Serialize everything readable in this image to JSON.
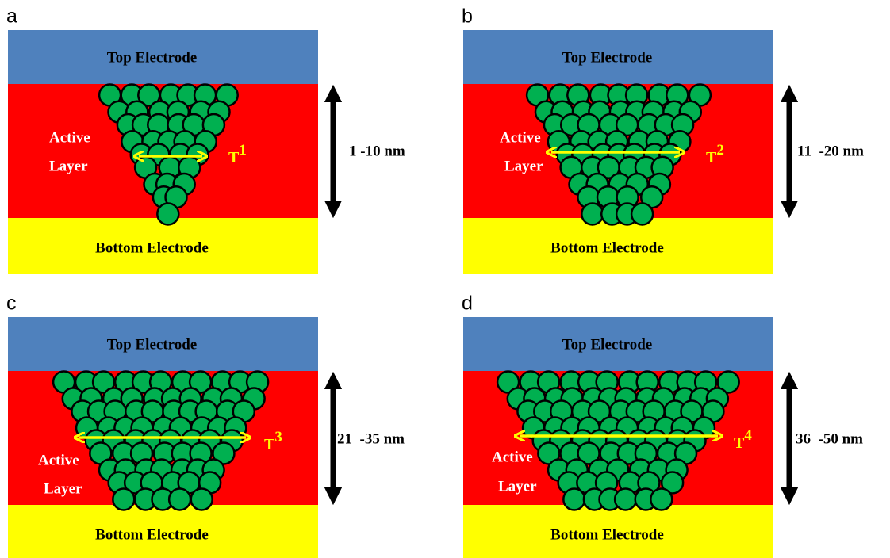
{
  "panels": [
    {
      "letter": "a",
      "top_electrode": "Top Electrode",
      "active_layer": [
        "Active",
        "Layer"
      ],
      "bottom_electrode": "Bottom Electrode",
      "thickness_symbol": {
        "base": "T",
        "sup": "1"
      },
      "thickness_range": "1 -10 nm"
    },
    {
      "letter": "b",
      "top_electrode": "Top Electrode",
      "active_layer": [
        "Active",
        "Layer"
      ],
      "bottom_electrode": "Bottom Electrode",
      "thickness_symbol": {
        "base": "T",
        "sup": "2"
      },
      "thickness_range": "11  -20 nm"
    },
    {
      "letter": "c",
      "top_electrode": "Top Electrode",
      "active_layer": [
        "Active",
        "Layer"
      ],
      "bottom_electrode": "Bottom Electrode",
      "thickness_symbol": {
        "base": "T",
        "sup": "3"
      },
      "thickness_range": "21  -35 nm"
    },
    {
      "letter": "d",
      "top_electrode": "Top Electrode",
      "active_layer": [
        "Active",
        "Layer"
      ],
      "bottom_electrode": "Bottom Electrode",
      "thickness_symbol": {
        "base": "T",
        "sup": "4"
      },
      "thickness_range": "36  -50 nm"
    }
  ]
}
